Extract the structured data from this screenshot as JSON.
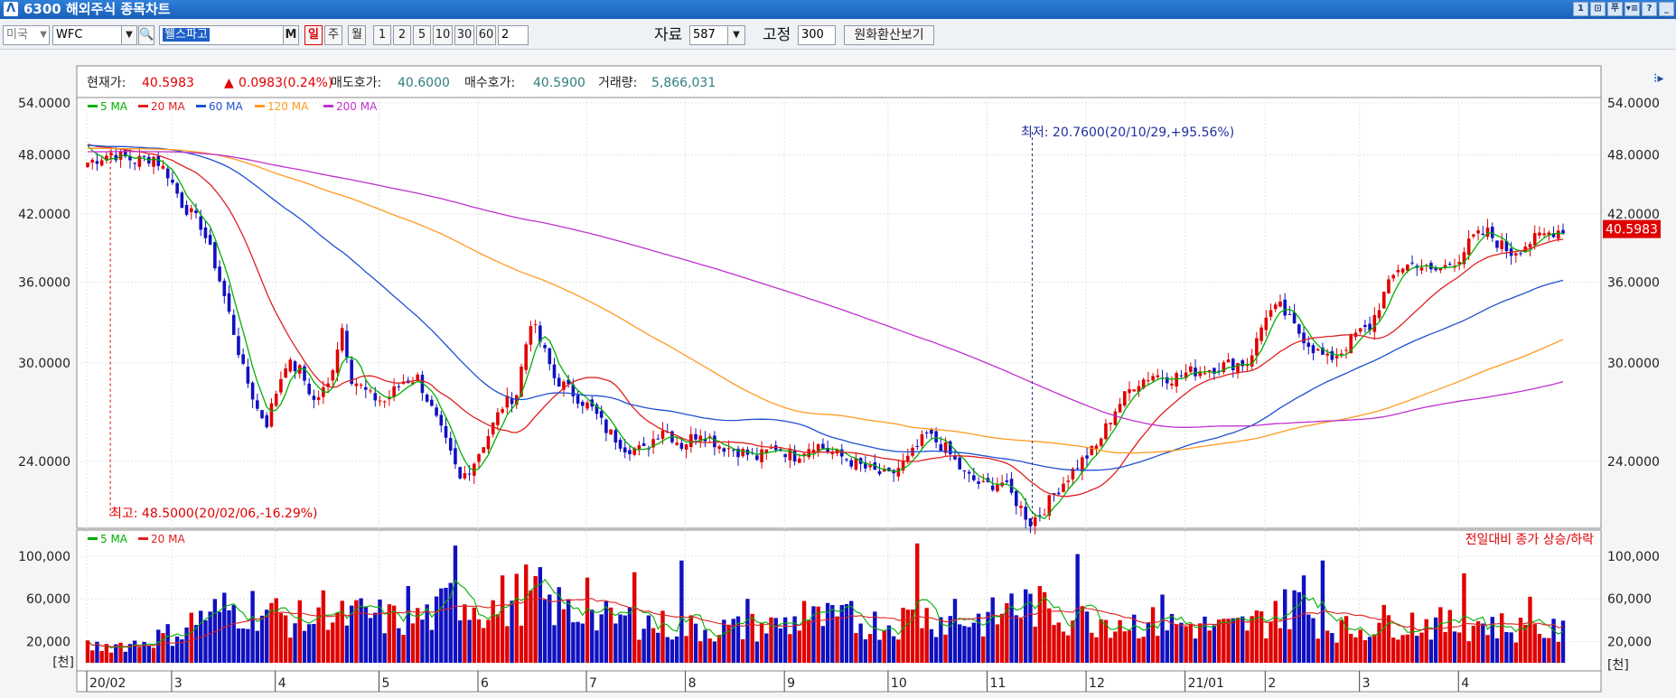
{
  "window": {
    "title": "6300 해외주식 종목차트",
    "logo": "Λ",
    "buttons": [
      "1",
      "⊡",
      "푸",
      "▾≡",
      "?",
      "_"
    ]
  },
  "toolbar": {
    "market": "미국",
    "symbol": "WFC",
    "name": "웰스파고",
    "m_btn": "M",
    "periods": [
      "일",
      "주",
      "월",
      "1",
      "2",
      "5",
      "10",
      "30",
      "60"
    ],
    "period_input": "2",
    "data_label": "자료",
    "data_value": "587",
    "fixed_label": "고정",
    "fixed_value": "300",
    "convert_btn": "원화환산보기"
  },
  "info": {
    "price_label": "현재가:",
    "price": "40.5983",
    "change": "0.0983(0.24%)",
    "ask_label": "매도호가:",
    "ask": "40.6000",
    "bid_label": "매수호가:",
    "bid": "40.5900",
    "vol_label": "거래량:",
    "vol": "5,866,031"
  },
  "colors": {
    "up": "#e00000",
    "down": "#1010c0",
    "ma5": "#00b000",
    "ma20": "#e02020",
    "ma60": "#2050d0",
    "ma120": "#ff9a20",
    "ma200": "#c030d0"
  },
  "chart_data": {
    "type": "candlestick",
    "price_axis": {
      "ticks": [
        "54.0000",
        "48.0000",
        "42.0000",
        "36.0000",
        "30.0000",
        "24.0000"
      ]
    },
    "volume_axis": {
      "ticks": [
        "100,000",
        "60,000",
        "20,000"
      ],
      "unit": "[천]"
    },
    "x_ticks": [
      "20/02",
      "3",
      "4",
      "5",
      "6",
      "7",
      "8",
      "9",
      "10",
      "11",
      "12",
      "21/01",
      "2",
      "3",
      "4"
    ],
    "legend_price": [
      "5 MA",
      "20 MA",
      "60 MA",
      "120 MA",
      "200 MA"
    ],
    "legend_volume": [
      "5 MA",
      "20 MA"
    ],
    "volume_note": "전일대비 종가 상승/하락",
    "high_annotation": "최고: 48.5000(20/02/06,-16.29%)",
    "low_annotation": "최저: 20.7600(20/10/29,+95.56%)",
    "last_price_tag": "40.5983",
    "closes_keypoints": [
      [
        0,
        47.2
      ],
      [
        5,
        48.2
      ],
      [
        10,
        47.4
      ],
      [
        14,
        47.8
      ],
      [
        17,
        46.0
      ],
      [
        20,
        43.0
      ],
      [
        24,
        41.0
      ],
      [
        27,
        37.5
      ],
      [
        30,
        33.5
      ],
      [
        33,
        29.5
      ],
      [
        36,
        27.0
      ],
      [
        38,
        26.2
      ],
      [
        42,
        30.0
      ],
      [
        45,
        29.5
      ],
      [
        48,
        27.5
      ],
      [
        51,
        28.5
      ],
      [
        54,
        32.5
      ],
      [
        56,
        29.0
      ],
      [
        60,
        27.8
      ],
      [
        63,
        27.5
      ],
      [
        67,
        28.8
      ],
      [
        70,
        29.0
      ],
      [
        73,
        27.0
      ],
      [
        76,
        25.0
      ],
      [
        79,
        23.0
      ],
      [
        82,
        24.0
      ],
      [
        85,
        25.5
      ],
      [
        88,
        27.2
      ],
      [
        91,
        28.0
      ],
      [
        94,
        33.0
      ],
      [
        96,
        31.5
      ],
      [
        99,
        29.0
      ],
      [
        103,
        28.0
      ],
      [
        107,
        27.0
      ],
      [
        110,
        25.8
      ],
      [
        114,
        24.8
      ],
      [
        118,
        24.6
      ],
      [
        122,
        25.9
      ],
      [
        126,
        24.9
      ],
      [
        130,
        25.7
      ],
      [
        134,
        24.9
      ],
      [
        138,
        24.6
      ],
      [
        142,
        24.2
      ],
      [
        146,
        24.8
      ],
      [
        150,
        24.3
      ],
      [
        154,
        25.0
      ],
      [
        158,
        24.5
      ],
      [
        162,
        24.0
      ],
      [
        166,
        23.5
      ],
      [
        170,
        23.2
      ],
      [
        174,
        24.1
      ],
      [
        178,
        25.5
      ],
      [
        182,
        24.7
      ],
      [
        186,
        23.3
      ],
      [
        190,
        22.7
      ],
      [
        194,
        22.9
      ],
      [
        198,
        21.6
      ],
      [
        200,
        20.9
      ],
      [
        203,
        21.6
      ],
      [
        206,
        22.6
      ],
      [
        210,
        23.8
      ],
      [
        214,
        24.8
      ],
      [
        218,
        27.0
      ],
      [
        222,
        28.6
      ],
      [
        226,
        29.2
      ],
      [
        230,
        29.0
      ],
      [
        234,
        29.4
      ],
      [
        238,
        29.6
      ],
      [
        242,
        29.9
      ],
      [
        246,
        30.0
      ],
      [
        248,
        31.5
      ],
      [
        250,
        33.5
      ],
      [
        253,
        34.0
      ],
      [
        256,
        32.5
      ],
      [
        260,
        31.0
      ],
      [
        263,
        30.2
      ],
      [
        266,
        30.8
      ],
      [
        269,
        32.0
      ],
      [
        272,
        32.5
      ],
      [
        275,
        35.0
      ],
      [
        278,
        37.2
      ],
      [
        282,
        37.6
      ],
      [
        285,
        36.8
      ],
      [
        288,
        37.3
      ],
      [
        291,
        38.1
      ],
      [
        294,
        39.8
      ],
      [
        297,
        40.3
      ],
      [
        299,
        39.4
      ],
      [
        302,
        38.5
      ],
      [
        305,
        39.2
      ],
      [
        308,
        39.9
      ],
      [
        311,
        40.4
      ],
      [
        313,
        40.6
      ]
    ],
    "volume_keypoints": [
      [
        0,
        15000
      ],
      [
        10,
        18000
      ],
      [
        20,
        30000
      ],
      [
        24,
        45000
      ],
      [
        30,
        50000
      ],
      [
        36,
        52000
      ],
      [
        42,
        42000
      ],
      [
        50,
        38000
      ],
      [
        58,
        45000
      ],
      [
        66,
        40000
      ],
      [
        74,
        45000
      ],
      [
        78,
        65000
      ],
      [
        82,
        55000
      ],
      [
        88,
        50000
      ],
      [
        94,
        70000
      ],
      [
        98,
        55000
      ],
      [
        104,
        45000
      ],
      [
        110,
        40000
      ],
      [
        116,
        40000
      ],
      [
        122,
        35000
      ],
      [
        130,
        32000
      ],
      [
        138,
        32000
      ],
      [
        146,
        35000
      ],
      [
        152,
        40000
      ],
      [
        158,
        40000
      ],
      [
        164,
        38000
      ],
      [
        170,
        36000
      ],
      [
        176,
        45000
      ],
      [
        182,
        40000
      ],
      [
        190,
        40000
      ],
      [
        196,
        48000
      ],
      [
        200,
        55000
      ],
      [
        204,
        48000
      ],
      [
        210,
        40000
      ],
      [
        216,
        42000
      ],
      [
        222,
        38000
      ],
      [
        230,
        36000
      ],
      [
        236,
        34000
      ],
      [
        242,
        32000
      ],
      [
        250,
        40000
      ],
      [
        256,
        55000
      ],
      [
        262,
        38000
      ],
      [
        268,
        30000
      ],
      [
        276,
        40000
      ],
      [
        282,
        38000
      ],
      [
        290,
        35000
      ],
      [
        296,
        38000
      ],
      [
        302,
        32000
      ],
      [
        308,
        30000
      ],
      [
        313,
        28000
      ]
    ],
    "volume_spikes": [
      [
        26,
        48000
      ],
      [
        50,
        68000
      ],
      [
        68,
        72000
      ],
      [
        78,
        110000
      ],
      [
        88,
        82000
      ],
      [
        94,
        68000
      ],
      [
        98,
        64000
      ],
      [
        106,
        80000
      ],
      [
        116,
        85000
      ],
      [
        126,
        96000
      ],
      [
        140,
        60000
      ],
      [
        152,
        58000
      ],
      [
        162,
        58000
      ],
      [
        176,
        112000
      ],
      [
        184,
        60000
      ],
      [
        196,
        65000
      ],
      [
        202,
        72000
      ],
      [
        210,
        102000
      ],
      [
        228,
        64000
      ],
      [
        252,
        58000
      ],
      [
        256,
        68000
      ],
      [
        258,
        82000
      ],
      [
        262,
        96000
      ],
      [
        292,
        84000
      ],
      [
        306,
        62000
      ]
    ]
  }
}
